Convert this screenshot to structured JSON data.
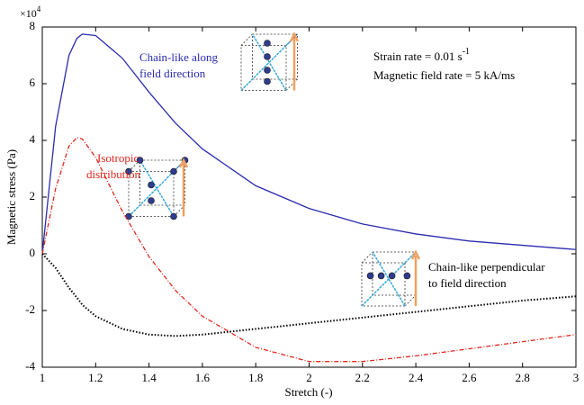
{
  "chart_data": {
    "type": "line",
    "x_label": "Stretch (-)",
    "y_label": "Magnetic stress (Pa)",
    "y_multiplier": {
      "base": "×10",
      "exponent": "4"
    },
    "xlim": [
      1,
      3
    ],
    "ylim": [
      -4,
      8
    ],
    "xticks": [
      1,
      1.2,
      1.4,
      1.6,
      1.8,
      2,
      2.2,
      2.4,
      2.6,
      2.8,
      3
    ],
    "yticks": [
      -4,
      -2,
      0,
      2,
      4,
      6,
      8
    ],
    "x": [
      1,
      1.05,
      1.1,
      1.13,
      1.15,
      1.2,
      1.3,
      1.4,
      1.5,
      1.6,
      1.8,
      2.0,
      2.2,
      2.4,
      2.6,
      2.8,
      3.0
    ],
    "series": [
      {
        "color": "#2b2bb0",
        "style": "solid",
        "values": [
          0,
          4.5,
          7.0,
          7.6,
          7.75,
          7.7,
          6.9,
          5.7,
          4.6,
          3.7,
          2.4,
          1.6,
          1.05,
          0.7,
          0.45,
          0.3,
          0.15
        ]
      },
      {
        "color": "#e0281e",
        "style": "dashdot",
        "values": [
          0,
          2.3,
          3.8,
          4.1,
          4.05,
          3.4,
          1.5,
          -0.1,
          -1.3,
          -2.2,
          -3.3,
          -3.8,
          -3.8,
          -3.6,
          -3.35,
          -3.1,
          -2.85
        ]
      },
      {
        "color": "#000000",
        "style": "dotted",
        "values": [
          0,
          -0.5,
          -1.2,
          -1.55,
          -1.8,
          -2.2,
          -2.65,
          -2.85,
          -2.9,
          -2.85,
          -2.65,
          -2.45,
          -2.25,
          -2.05,
          -1.85,
          -1.65,
          -1.5
        ]
      }
    ],
    "annotations": [
      {
        "lines": [
          "Chain-like along",
          "field direction"
        ],
        "color": "#2b2bb0"
      },
      {
        "lines": [
          "Isotropic",
          "distribution"
        ],
        "color": "#e0281e"
      },
      {
        "lines": [
          "Chain-like perpendicular",
          "to field direction"
        ],
        "color": "#000000"
      }
    ],
    "conditions": [
      {
        "text": "Strain rate = 0.01 s",
        "superscript": "-1"
      },
      {
        "text": "Magnetic field rate = 5 kA/ms"
      }
    ]
  }
}
